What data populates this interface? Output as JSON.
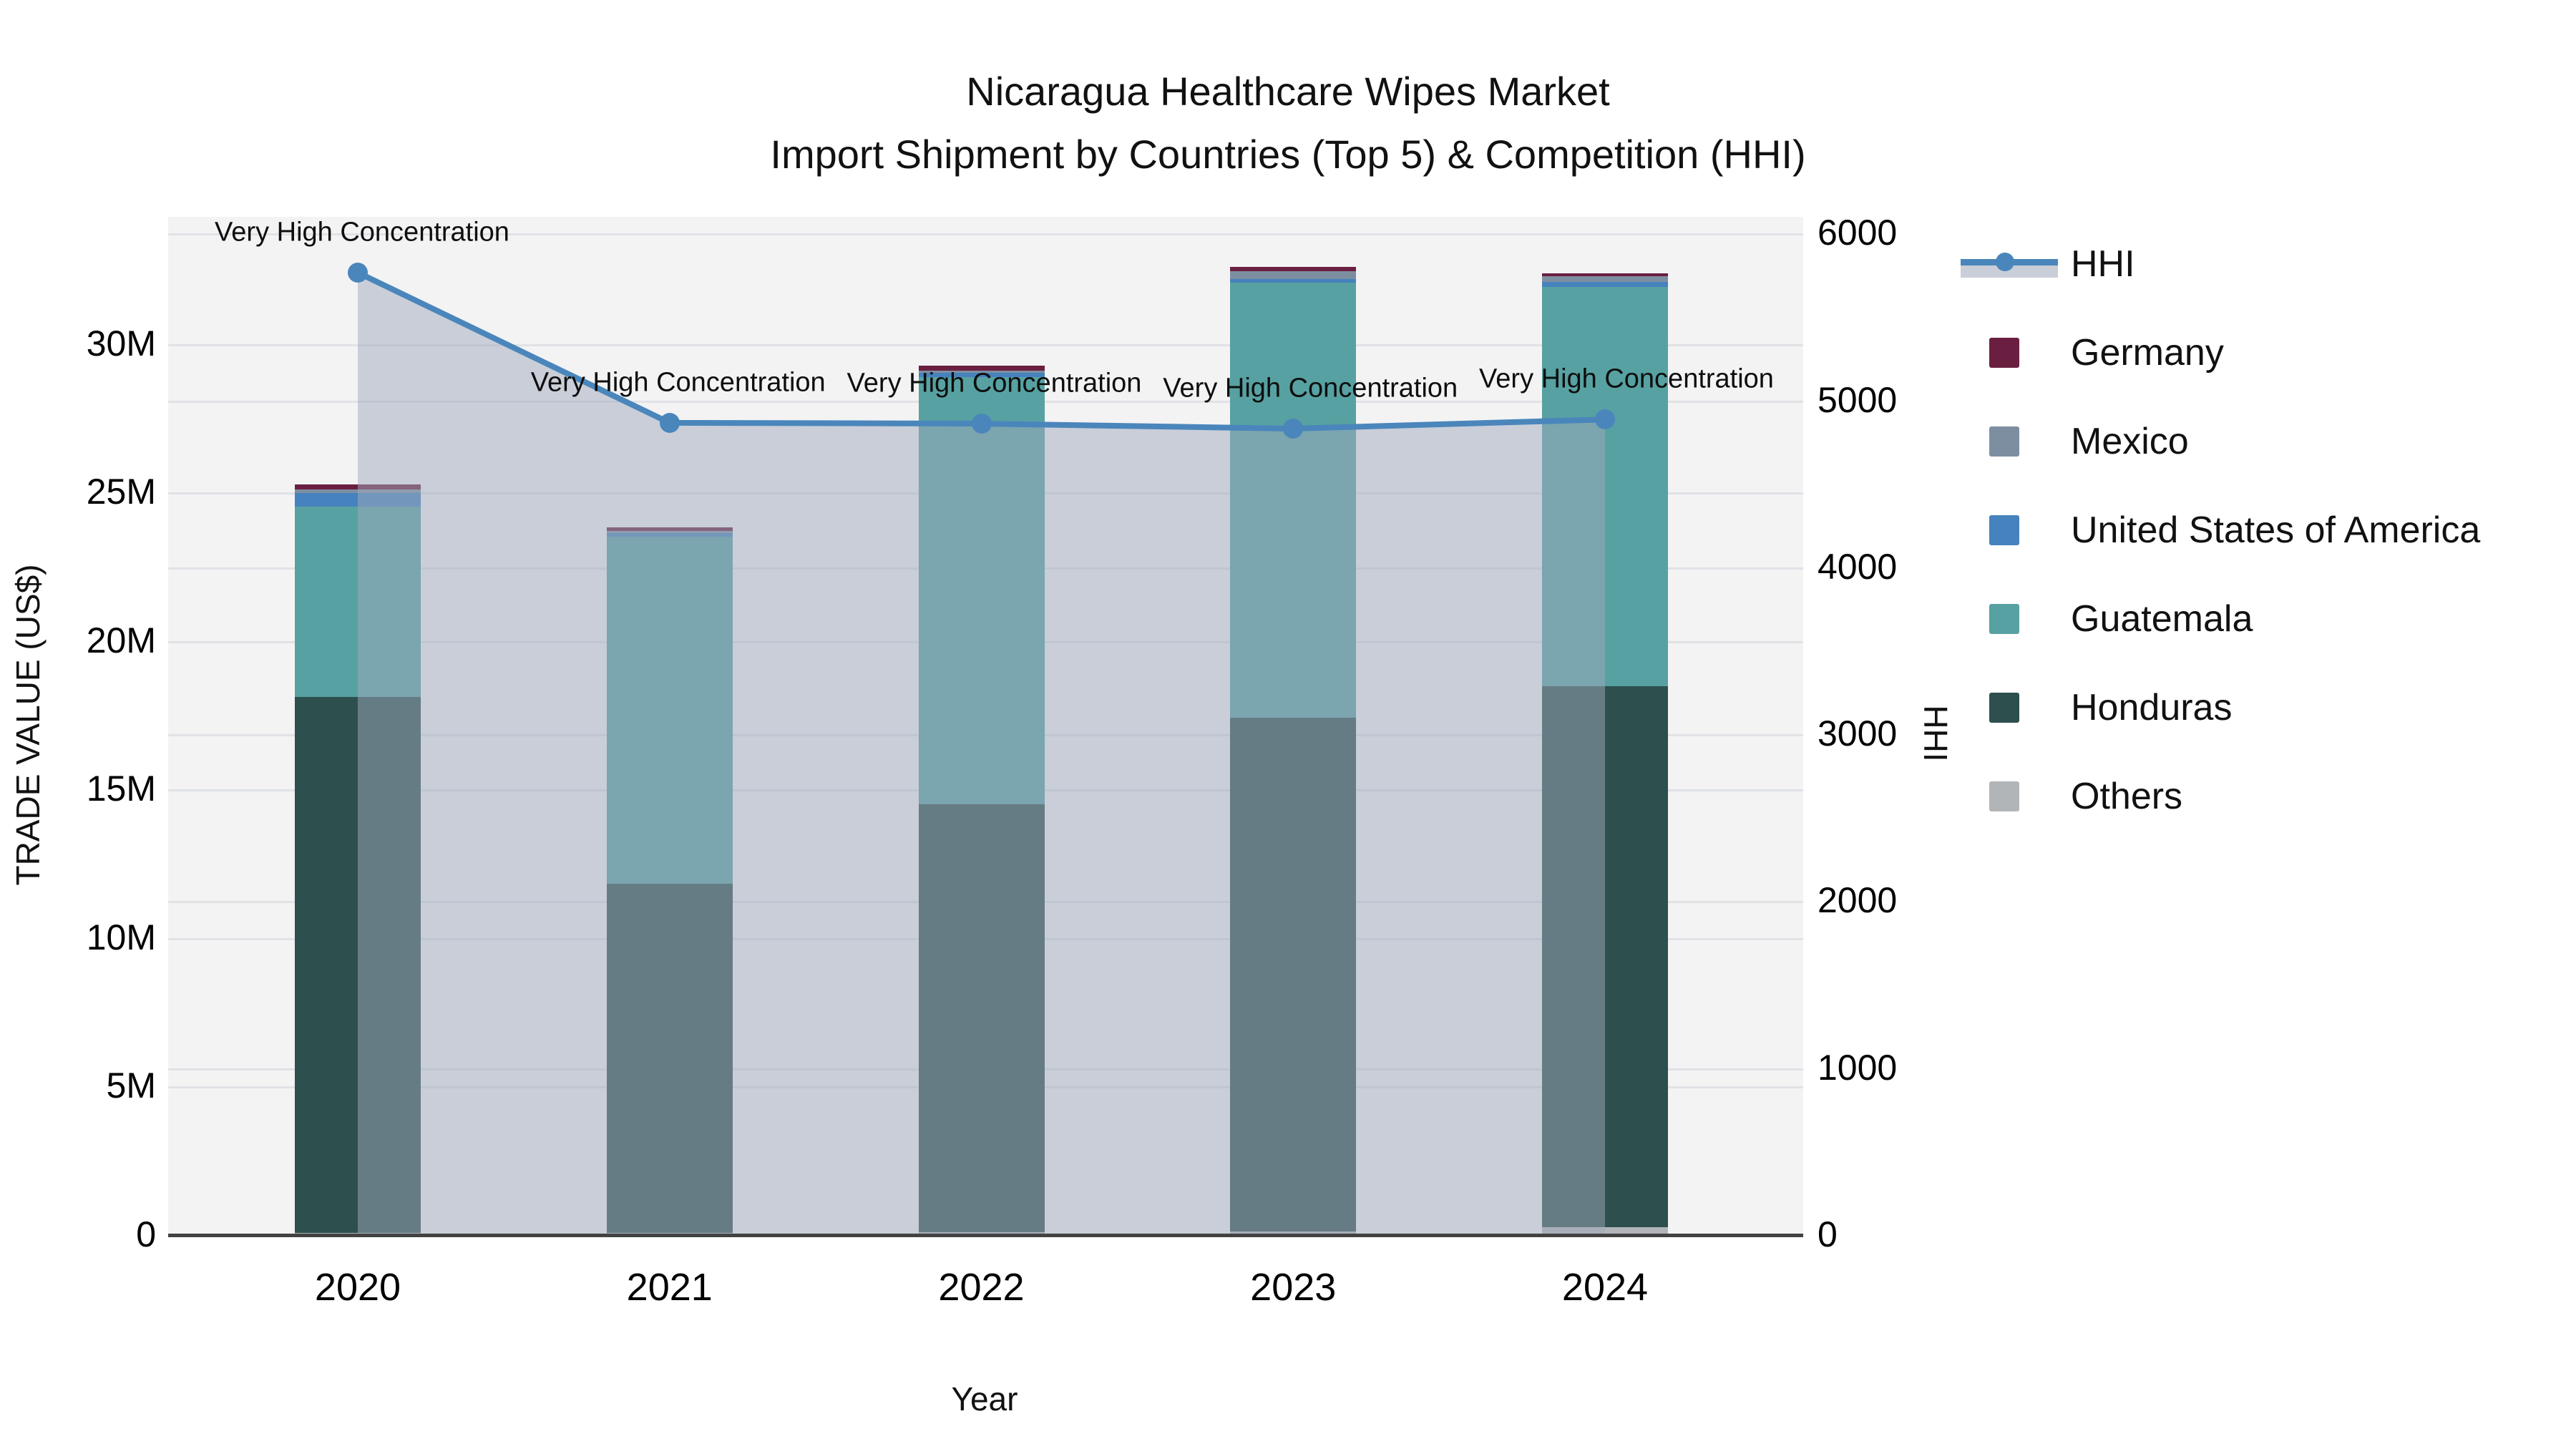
{
  "title": {
    "line1": "Nicaragua Healthcare Wipes Market",
    "line2": "Import Shipment by Countries (Top 5) & Competition (HHI)"
  },
  "axes": {
    "x": {
      "title": "Year",
      "categories": [
        "2020",
        "2021",
        "2022",
        "2023",
        "2024"
      ]
    },
    "y_left": {
      "title": "TRADE VALUE (US$)",
      "tick_labels": [
        "0",
        "5M",
        "10M",
        "15M",
        "20M",
        "25M",
        "30M"
      ],
      "tick_values_millions": [
        0,
        5,
        10,
        15,
        20,
        25,
        30
      ],
      "max_millions": 34.31
    },
    "y_right": {
      "title": "HHI",
      "tick_labels": [
        "0",
        "1000",
        "2000",
        "3000",
        "4000",
        "5000",
        "6000"
      ],
      "tick_values": [
        0,
        1000,
        2000,
        3000,
        4000,
        5000,
        6000
      ],
      "max": 6104
    }
  },
  "legend": [
    {
      "label": "HHI",
      "color": "#4a86bb",
      "swatch": "line",
      "band_color": "#c9ced8"
    },
    {
      "label": "Germany",
      "color": "#6b1f40",
      "swatch": "square"
    },
    {
      "label": "Mexico",
      "color": "#7e8ea1",
      "swatch": "square"
    },
    {
      "label": "United States of America",
      "color": "#4682bd",
      "swatch": "square"
    },
    {
      "label": "Guatemala",
      "color": "#57a1a2",
      "swatch": "square"
    },
    {
      "label": "Honduras",
      "color": "#2d4f4e",
      "swatch": "square"
    },
    {
      "label": "Others",
      "color": "#b2b5b8",
      "swatch": "square"
    }
  ],
  "chart_data": {
    "type": "bar+line",
    "categories": [
      "2020",
      "2021",
      "2022",
      "2023",
      "2024"
    ],
    "bar_unit": "US$ millions",
    "stack_order_bottom_to_top": [
      "Others",
      "Honduras",
      "Guatemala",
      "United States of America",
      "Mexico",
      "Germany"
    ],
    "series": [
      {
        "name": "Others",
        "color": "#b2b5b8",
        "values": [
          0.1,
          0.1,
          0.12,
          0.15,
          0.3
        ]
      },
      {
        "name": "Honduras",
        "color": "#2d4f4e",
        "values": [
          18.05,
          11.75,
          14.4,
          17.3,
          18.2
        ]
      },
      {
        "name": "Guatemala",
        "color": "#57a1a2",
        "values": [
          6.4,
          11.7,
          14.4,
          14.65,
          13.45
        ]
      },
      {
        "name": "United States of America",
        "color": "#4682bd",
        "values": [
          0.45,
          0.12,
          0.13,
          0.11,
          0.17
        ]
      },
      {
        "name": "Mexico",
        "color": "#7e8ea1",
        "values": [
          0.12,
          0.07,
          0.07,
          0.27,
          0.18
        ]
      },
      {
        "name": "Germany",
        "color": "#6b1f40",
        "values": [
          0.17,
          0.12,
          0.19,
          0.14,
          0.11
        ]
      }
    ],
    "bar_totals_millions": [
      25.29,
      23.86,
      29.31,
      32.62,
      32.41
    ],
    "hhi_line": {
      "name": "HHI",
      "color": "#4a86bb",
      "area_fill": "rgba(159,169,188,0.5)",
      "values": [
        5770,
        4870,
        4865,
        4835,
        4890
      ]
    },
    "annotations": [
      "Very High Concentration",
      "Very High Concentration",
      "Very High Concentration",
      "Very High Concentration",
      "Very High Concentration"
    ],
    "layout_hints": {
      "plot_background": "#f3f3f4",
      "grid_on": true,
      "legend_position": "right",
      "y_left_range_millions": [
        0,
        34.31
      ],
      "y_right_range": [
        0,
        6104
      ]
    }
  }
}
